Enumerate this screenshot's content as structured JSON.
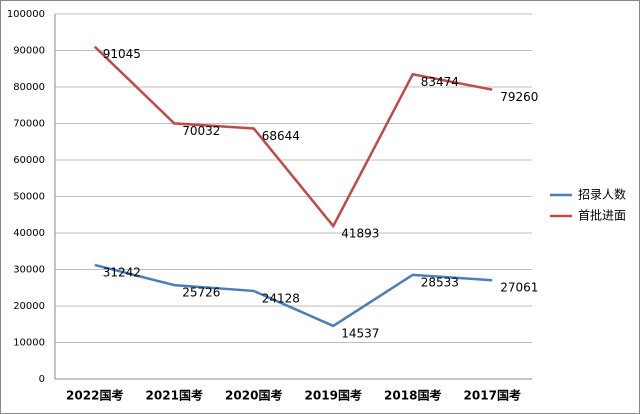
{
  "chart_data": {
    "type": "line",
    "categories": [
      "2022国考",
      "2021国考",
      "2020国考",
      "2019国考",
      "2018国考",
      "2017国考"
    ],
    "series": [
      {
        "name": "招录人数",
        "color": "#4a7ebb",
        "values": [
          31242,
          25726,
          24128,
          14537,
          28533,
          27061
        ]
      },
      {
        "name": "首批进面",
        "color": "#be4b48",
        "values": [
          91045,
          70032,
          68644,
          41893,
          83474,
          79260
        ]
      }
    ],
    "ylim": [
      0,
      100000
    ],
    "yticks": [
      0,
      10000,
      20000,
      30000,
      40000,
      50000,
      60000,
      70000,
      80000,
      90000,
      100000
    ],
    "grid": true,
    "legend": "right"
  }
}
